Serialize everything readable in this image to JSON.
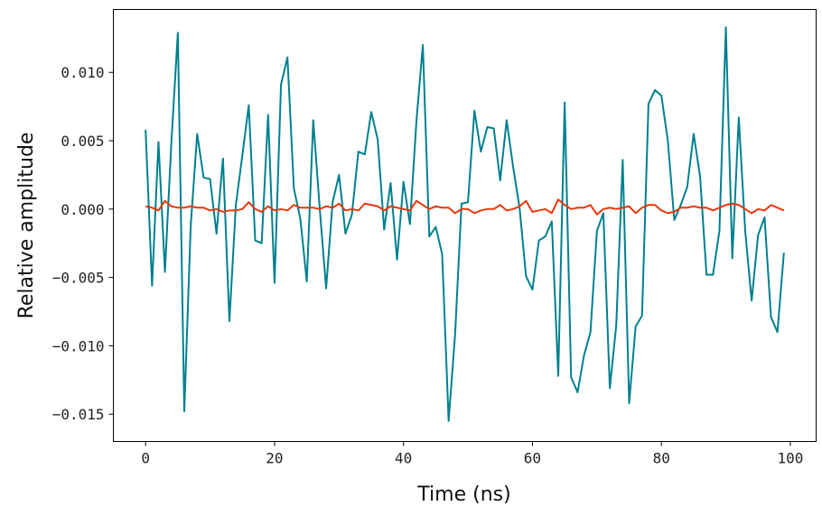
{
  "chart_data": {
    "type": "line",
    "xlabel": "Time (ns)",
    "ylabel": "Relative amplitude",
    "xlim": [
      -5,
      104
    ],
    "ylim": [
      -0.017,
      0.0146
    ],
    "xticks": [
      0,
      20,
      40,
      60,
      80,
      100
    ],
    "xtick_labels": [
      "0",
      "20",
      "40",
      "60",
      "80",
      "100"
    ],
    "yticks": [
      -0.015,
      -0.01,
      -0.005,
      0.0,
      0.005,
      0.01
    ],
    "ytick_labels": [
      "−0.015",
      "−0.010",
      "−0.005",
      "0.000",
      "0.005",
      "0.010"
    ],
    "grid": false,
    "x": [
      0,
      1,
      2,
      3,
      4,
      5,
      6,
      7,
      8,
      9,
      10,
      11,
      12,
      13,
      14,
      15,
      16,
      17,
      18,
      19,
      20,
      21,
      22,
      23,
      24,
      25,
      26,
      27,
      28,
      29,
      30,
      31,
      32,
      33,
      34,
      35,
      36,
      37,
      38,
      39,
      40,
      41,
      42,
      43,
      44,
      45,
      46,
      47,
      48,
      49,
      50,
      51,
      52,
      53,
      54,
      55,
      56,
      57,
      58,
      59,
      60,
      61,
      62,
      63,
      64,
      65,
      66,
      67,
      68,
      69,
      70,
      71,
      72,
      73,
      74,
      75,
      76,
      77,
      78,
      79,
      80,
      81,
      82,
      83,
      84,
      85,
      86,
      87,
      88,
      89,
      90,
      91,
      92,
      93,
      94,
      95,
      96,
      97,
      98,
      99
    ],
    "series": [
      {
        "color": "#00808f",
        "values": [
          0.0058,
          -0.0056,
          0.0049,
          -0.0046,
          0.0049,
          0.0129,
          -0.0148,
          -0.0012,
          0.0055,
          0.0023,
          0.0022,
          -0.0018,
          0.0037,
          -0.0082,
          0.0003,
          0.0039,
          0.0076,
          -0.0023,
          -0.0025,
          0.0069,
          -0.0054,
          0.0091,
          0.0111,
          0.0015,
          -0.0007,
          -0.0053,
          0.0065,
          0.0001,
          -0.0058,
          0.0005,
          0.0025,
          -0.0018,
          -0.0004,
          0.0042,
          0.004,
          0.0071,
          0.0051,
          -0.0015,
          0.0019,
          -0.0037,
          0.002,
          -0.0011,
          0.0064,
          0.012,
          -0.002,
          -0.0013,
          -0.0033,
          -0.0155,
          -0.0092,
          0.0004,
          0.0005,
          0.0072,
          0.0042,
          0.006,
          0.0059,
          0.0021,
          0.0065,
          0.0031,
          0.0001,
          -0.0049,
          -0.0059,
          -0.0023,
          -0.002,
          -0.0009,
          -0.0122,
          0.0078,
          -0.0123,
          -0.0134,
          -0.0107,
          -0.009,
          -0.0016,
          -0.0003,
          -0.0131,
          -0.0085,
          0.0036,
          -0.0142,
          -0.0086,
          -0.0078,
          0.0077,
          0.0087,
          0.0083,
          0.005,
          -0.0008,
          0.0003,
          0.0016,
          0.0055,
          0.0024,
          -0.0048,
          -0.0048,
          -0.0016,
          0.0133,
          -0.0036,
          0.0067,
          -0.0016,
          -0.0067,
          -0.0019,
          -0.0006,
          -0.0079,
          -0.009,
          -0.0032
        ]
      },
      {
        "color": "#e8380d",
        "values": [
          0.0002,
          0.0001,
          -0.0001,
          0.0006,
          0.0002,
          0.0001,
          0.0001,
          0.0002,
          0.0001,
          0.0001,
          -0.0001,
          0.0,
          -0.0002,
          -0.0001,
          -0.0001,
          0.0,
          0.0005,
          0.0,
          -0.0002,
          0.0002,
          -0.0001,
          0.0,
          -0.0001,
          0.0003,
          0.0001,
          0.0001,
          0.0001,
          0.0,
          0.0002,
          0.0001,
          0.0004,
          -0.0001,
          0.0,
          -0.0001,
          0.0004,
          0.0003,
          0.0002,
          -0.0001,
          0.0002,
          0.0001,
          0.0,
          -0.0001,
          0.0006,
          0.0003,
          0.0,
          0.0002,
          0.0001,
          0.0001,
          -0.0003,
          0.0,
          0.0,
          -0.0003,
          -0.0001,
          0.0,
          0.0,
          0.0003,
          -0.0001,
          0.0,
          0.0002,
          0.0006,
          -0.0002,
          -0.0001,
          0.0,
          -0.0003,
          0.0007,
          0.0003,
          0.0,
          0.0001,
          0.0001,
          0.0003,
          -0.0004,
          0.0,
          0.0001,
          0.0,
          0.0001,
          0.0002,
          -0.0003,
          0.0001,
          0.0003,
          0.0003,
          -0.0001,
          -0.0003,
          -0.0002,
          0.0001,
          0.0001,
          0.0002,
          0.0001,
          0.0001,
          -0.0001,
          0.0001,
          0.0003,
          0.0004,
          0.0003,
          0.0,
          -0.0003,
          0.0,
          -0.0001,
          0.0003,
          0.0001,
          -0.0001
        ]
      }
    ]
  }
}
